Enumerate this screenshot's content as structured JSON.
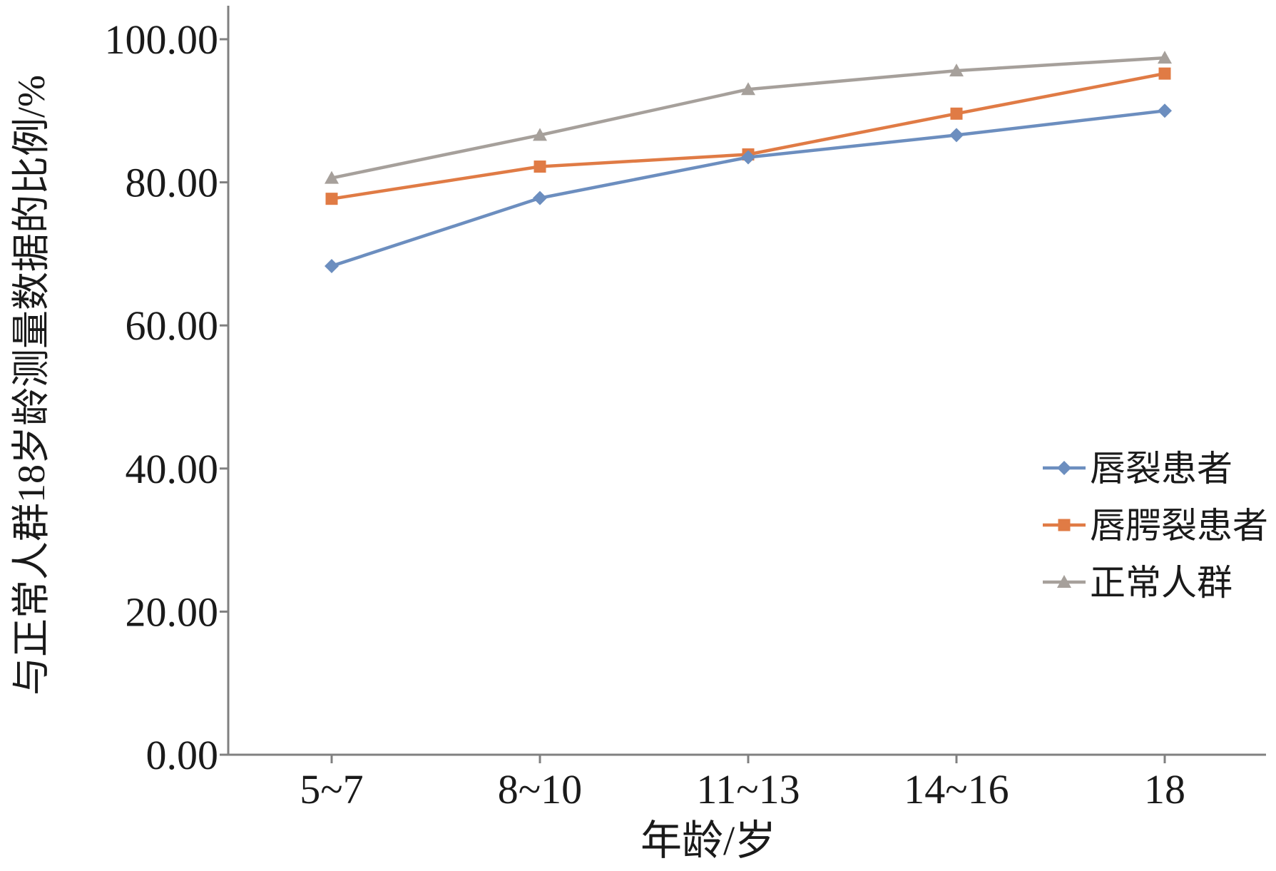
{
  "chart_data": {
    "type": "line",
    "title": "",
    "xlabel": "年龄/岁",
    "ylabel": "与正常人群18岁龄测量数据的比例/%",
    "categories": [
      "5~7",
      "8~10",
      "11~13",
      "14~16",
      "18"
    ],
    "ylim": [
      0,
      100
    ],
    "yticks": [
      "0.00",
      "20.00",
      "40.00",
      "60.00",
      "80.00",
      "100.00"
    ],
    "grid": false,
    "legend_position": "right",
    "series": [
      {
        "name": "唇裂患者",
        "marker": "diamond",
        "color": "#6c8ebf",
        "values": [
          68.3,
          77.8,
          83.5,
          86.6,
          90.0
        ]
      },
      {
        "name": "唇腭裂患者",
        "marker": "square",
        "color": "#e07b45",
        "values": [
          77.7,
          82.2,
          83.9,
          89.6,
          95.2
        ]
      },
      {
        "name": "正常人群",
        "marker": "triangle",
        "color": "#a6a09b",
        "values": [
          80.6,
          86.6,
          93.0,
          95.6,
          97.4
        ]
      }
    ]
  }
}
